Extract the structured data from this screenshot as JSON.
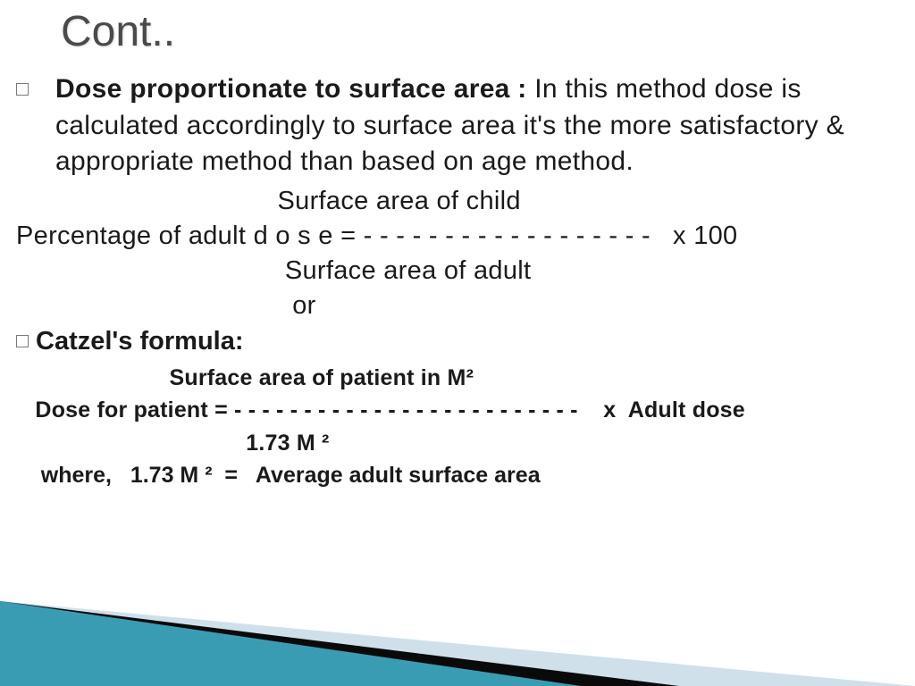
{
  "title": "Cont..",
  "para1": {
    "lead": "Dose proportionate to surface area : ",
    "rest": "In this method dose is calculated accordingly to surface area it's the more satisfactory & appropriate method than based on age method."
  },
  "formula1": {
    "numerator": "                                   Surface area of child",
    "line": "Percentage of adult d o s e = - - - - - - - - - - - - - - - - - -   x 100",
    "denominator": "                                    Surface area of adult",
    "or": "                                     or"
  },
  "catzel": {
    "head": "Catzel's formula:",
    "numerator": "                        Surface area of patient in M²",
    "line": "   Dose for patient = - - - - - - - - - - - - - - - - - - - - - - - - -    x  Adult dose",
    "denominator": "                                    1.73 M ²",
    "where": "    where,   1.73 M ²  =   Average adult surface area"
  },
  "colors": {
    "title": "#4a4a4a",
    "text": "#1a1a1a",
    "tri_light": "#cfe0eb",
    "tri_dark": "#0a0a0a",
    "tri_teal": "#3a9cb3"
  }
}
